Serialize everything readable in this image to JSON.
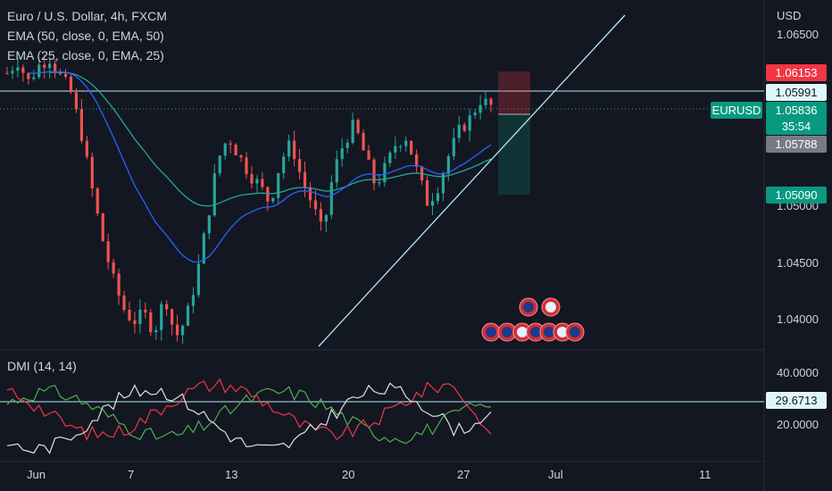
{
  "header": {
    "title": "Euro / U.S. Dollar, 4h, FXCM",
    "ema50": "EMA (50, close, 0, EMA, 50)",
    "ema25": "EMA (25, close, 0, EMA, 25)",
    "dmi": "DMI (14, 14)",
    "currency": "USD"
  },
  "symbol_tag": "EURUSD",
  "price_tags": {
    "p1": "1.06153",
    "p2": "1.05991",
    "p3": "1.05836",
    "countdown": "35:54",
    "p4": "1.05788",
    "p5": "1.05090",
    "dmi_level": "29.6713"
  },
  "price_axis": [
    "1.06500",
    "1.05000",
    "1.04500",
    "1.04000"
  ],
  "dmi_axis": [
    "40.0000",
    "20.0000"
  ],
  "x_axis": [
    "Jun",
    "7",
    "13",
    "20",
    "27",
    "Jul",
    "11"
  ],
  "colors": {
    "background": "#131722",
    "up": "#26a69a",
    "down": "#ef5350",
    "ema50": "#26a69a",
    "ema25": "#2962ff",
    "trendline": "#b2ebf2",
    "di_plus": "#4caf50",
    "di_minus": "#f23645",
    "adx": "#e0e0e0"
  },
  "chart_data": {
    "type": "candlestick",
    "symbol": "EURUSD",
    "timeframe": "4h",
    "ylim": [
      1.0385,
      1.0672
    ],
    "candles_approx": [
      1.0612,
      1.0622,
      1.0605,
      1.0618,
      1.0625,
      1.061,
      1.0598,
      1.0565,
      1.052,
      1.0478,
      1.0445,
      1.042,
      1.0408,
      1.0415,
      1.04,
      1.043,
      1.0395,
      1.041,
      1.0445,
      1.049,
      1.054,
      1.056,
      1.0545,
      1.053,
      1.052,
      1.0505,
      1.054,
      1.0555,
      1.0525,
      1.0505,
      1.048,
      1.053,
      1.0555,
      1.057,
      1.0545,
      1.052,
      1.0535,
      1.0555,
      1.056,
      1.053,
      1.0505,
      1.052,
      1.0545,
      1.0565,
      1.0575,
      1.059,
      1.0585
    ],
    "horizontal_levels": [
      1.05991,
      1.05836
    ],
    "trendline": [
      [
        1.0385,
        "Jun 18"
      ],
      [
        1.0655,
        "Jul 8"
      ]
    ],
    "dmi": {
      "di_plus_end": 27,
      "di_minus_end": 16,
      "adx_end": 25,
      "reference_level": 29.6713
    }
  }
}
